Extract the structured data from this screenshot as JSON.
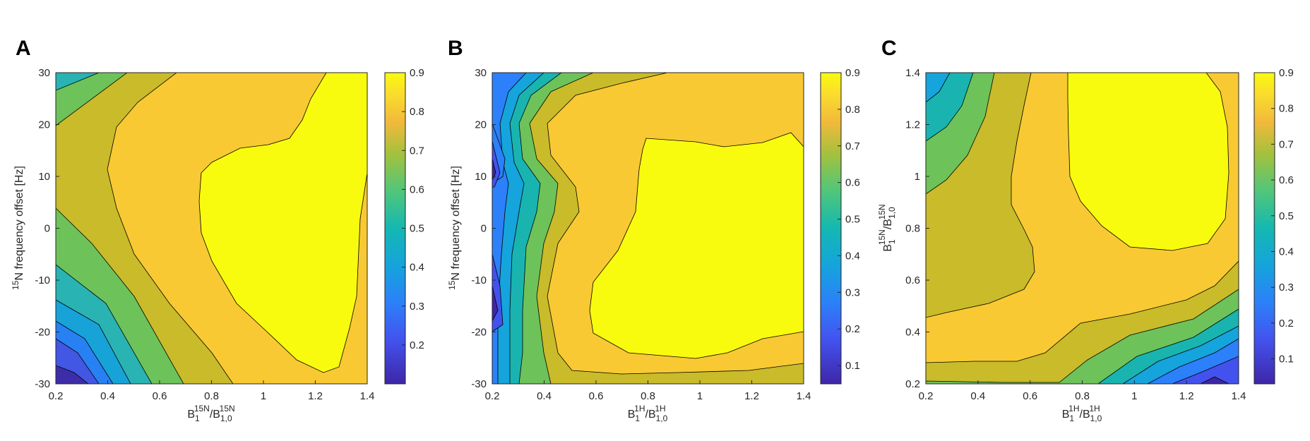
{
  "figure": {
    "panels": [
      {
        "letter": "A",
        "xlabel": {
          "main": "B",
          "sub1": "1",
          "sup1": "15N",
          "sep": "/B",
          "sub2": "1,0",
          "sup2": "15N"
        },
        "ylabel": {
          "sup": "15",
          "main": "N frequency offset [Hz]"
        },
        "xticks": [
          "0.2",
          "0.4",
          "0.6",
          "0.8",
          "1",
          "1.2",
          "1.4"
        ],
        "yticks": [
          "30",
          "20",
          "10",
          "0",
          "-10",
          "-20",
          "-30"
        ],
        "colorbar_ticks": [
          "0.9",
          "0.8",
          "0.7",
          "0.6",
          "0.5",
          "0.4",
          "0.3",
          "0.2"
        ]
      },
      {
        "letter": "B",
        "xlabel": {
          "main": "B",
          "sub1": "1",
          "sup1": "1H",
          "sep": "/B",
          "sub2": "1,0",
          "sup2": "1H"
        },
        "ylabel": {
          "sup": "15",
          "main": "N frequency offset [Hz]"
        },
        "xticks": [
          "0.2",
          "0.4",
          "0.6",
          "0.8",
          "1",
          "1.2",
          "1.4"
        ],
        "yticks": [
          "30",
          "20",
          "10",
          "0",
          "-10",
          "-20",
          "-30"
        ],
        "colorbar_ticks": [
          "0.9",
          "0.8",
          "0.7",
          "0.6",
          "0.5",
          "0.4",
          "0.3",
          "0.2",
          "0.1"
        ]
      },
      {
        "letter": "C",
        "xlabel": {
          "main": "B",
          "sub1": "1",
          "sup1": "1H",
          "sep": "/B",
          "sub2": "1,0",
          "sup2": "1H"
        },
        "ylabel": {
          "main": "B",
          "sub1": "1",
          "sup1": "15N",
          "sep": "/B",
          "sub2": "1,0",
          "sup2": "15N"
        },
        "xticks": [
          "0.2",
          "0.4",
          "0.6",
          "0.8",
          "1",
          "1.2",
          "1.4"
        ],
        "yticks": [
          "1.4",
          "1.2",
          "1",
          "0.8",
          "0.6",
          "0.4",
          "0.2"
        ],
        "colorbar_ticks": [
          "0.9",
          "0.8",
          "0.7",
          "0.6",
          "0.5",
          "0.4",
          "0.3",
          "0.2",
          "0.1"
        ]
      }
    ]
  },
  "chart_data": [
    {
      "type": "heatmap",
      "title": "A",
      "xlabel": "B1 15N / B1,0 15N",
      "ylabel": "15N frequency offset [Hz]",
      "xlim": [
        0.2,
        1.4
      ],
      "ylim": [
        -30,
        30
      ],
      "colorbar_range": [
        0.1,
        0.9
      ],
      "colormap": "parula",
      "x": [
        0.2,
        0.4,
        0.6,
        0.8,
        1.0,
        1.2,
        1.4
      ],
      "y": [
        30,
        20,
        10,
        0,
        -10,
        -20,
        -30
      ],
      "z": [
        [
          0.55,
          0.6,
          0.7,
          0.8,
          0.83,
          0.9,
          0.9
        ],
        [
          0.65,
          0.72,
          0.8,
          0.83,
          0.86,
          0.9,
          0.9
        ],
        [
          0.7,
          0.75,
          0.8,
          0.9,
          0.9,
          0.9,
          0.9
        ],
        [
          0.6,
          0.7,
          0.8,
          0.9,
          0.9,
          0.9,
          0.8
        ],
        [
          0.45,
          0.6,
          0.75,
          0.83,
          0.9,
          0.9,
          0.8
        ],
        [
          0.3,
          0.45,
          0.6,
          0.75,
          0.83,
          0.9,
          0.8
        ],
        [
          0.15,
          0.3,
          0.45,
          0.6,
          0.75,
          0.85,
          0.8
        ]
      ]
    },
    {
      "type": "heatmap",
      "title": "B",
      "xlabel": "B1 1H / B1,0 1H",
      "ylabel": "15N frequency offset [Hz]",
      "xlim": [
        0.2,
        1.4
      ],
      "ylim": [
        -30,
        30
      ],
      "colorbar_range": [
        0.05,
        0.9
      ],
      "colormap": "parula",
      "x": [
        0.2,
        0.4,
        0.6,
        0.8,
        1.0,
        1.2,
        1.4
      ],
      "y": [
        30,
        20,
        10,
        0,
        -10,
        -20,
        -30
      ],
      "z": [
        [
          0.35,
          0.65,
          0.75,
          0.8,
          0.8,
          0.8,
          0.8
        ],
        [
          0.2,
          0.55,
          0.75,
          0.8,
          0.8,
          0.8,
          0.8
        ],
        [
          0.1,
          0.5,
          0.7,
          0.85,
          0.9,
          0.9,
          0.85
        ],
        [
          0.15,
          0.55,
          0.75,
          0.85,
          0.9,
          0.9,
          0.9
        ],
        [
          0.1,
          0.55,
          0.75,
          0.9,
          0.9,
          0.9,
          0.9
        ],
        [
          0.1,
          0.6,
          0.75,
          0.85,
          0.85,
          0.85,
          0.85
        ],
        [
          0.4,
          0.65,
          0.75,
          0.8,
          0.8,
          0.75,
          0.7
        ]
      ]
    },
    {
      "type": "heatmap",
      "title": "C",
      "xlabel": "B1 1H / B1,0 1H",
      "ylabel": "B1 15N / B1,0 15N",
      "xlim": [
        0.2,
        1.4
      ],
      "ylim": [
        0.2,
        1.4
      ],
      "colorbar_range": [
        0.03,
        0.9
      ],
      "colormap": "parula",
      "x": [
        0.2,
        0.4,
        0.6,
        0.8,
        1.0,
        1.2,
        1.4
      ],
      "y": [
        1.4,
        1.2,
        1.0,
        0.8,
        0.6,
        0.4,
        0.2
      ],
      "z": [
        [
          0.5,
          0.65,
          0.8,
          0.9,
          0.9,
          0.9,
          0.8
        ],
        [
          0.55,
          0.7,
          0.8,
          0.9,
          0.9,
          0.9,
          0.8
        ],
        [
          0.65,
          0.75,
          0.8,
          0.88,
          0.9,
          0.9,
          0.8
        ],
        [
          0.7,
          0.75,
          0.8,
          0.82,
          0.88,
          0.88,
          0.8
        ],
        [
          0.75,
          0.75,
          0.8,
          0.8,
          0.8,
          0.8,
          0.75
        ],
        [
          0.8,
          0.8,
          0.8,
          0.75,
          0.7,
          0.6,
          0.5
        ],
        [
          0.75,
          0.75,
          0.7,
          0.55,
          0.4,
          0.25,
          0.1
        ]
      ]
    }
  ]
}
